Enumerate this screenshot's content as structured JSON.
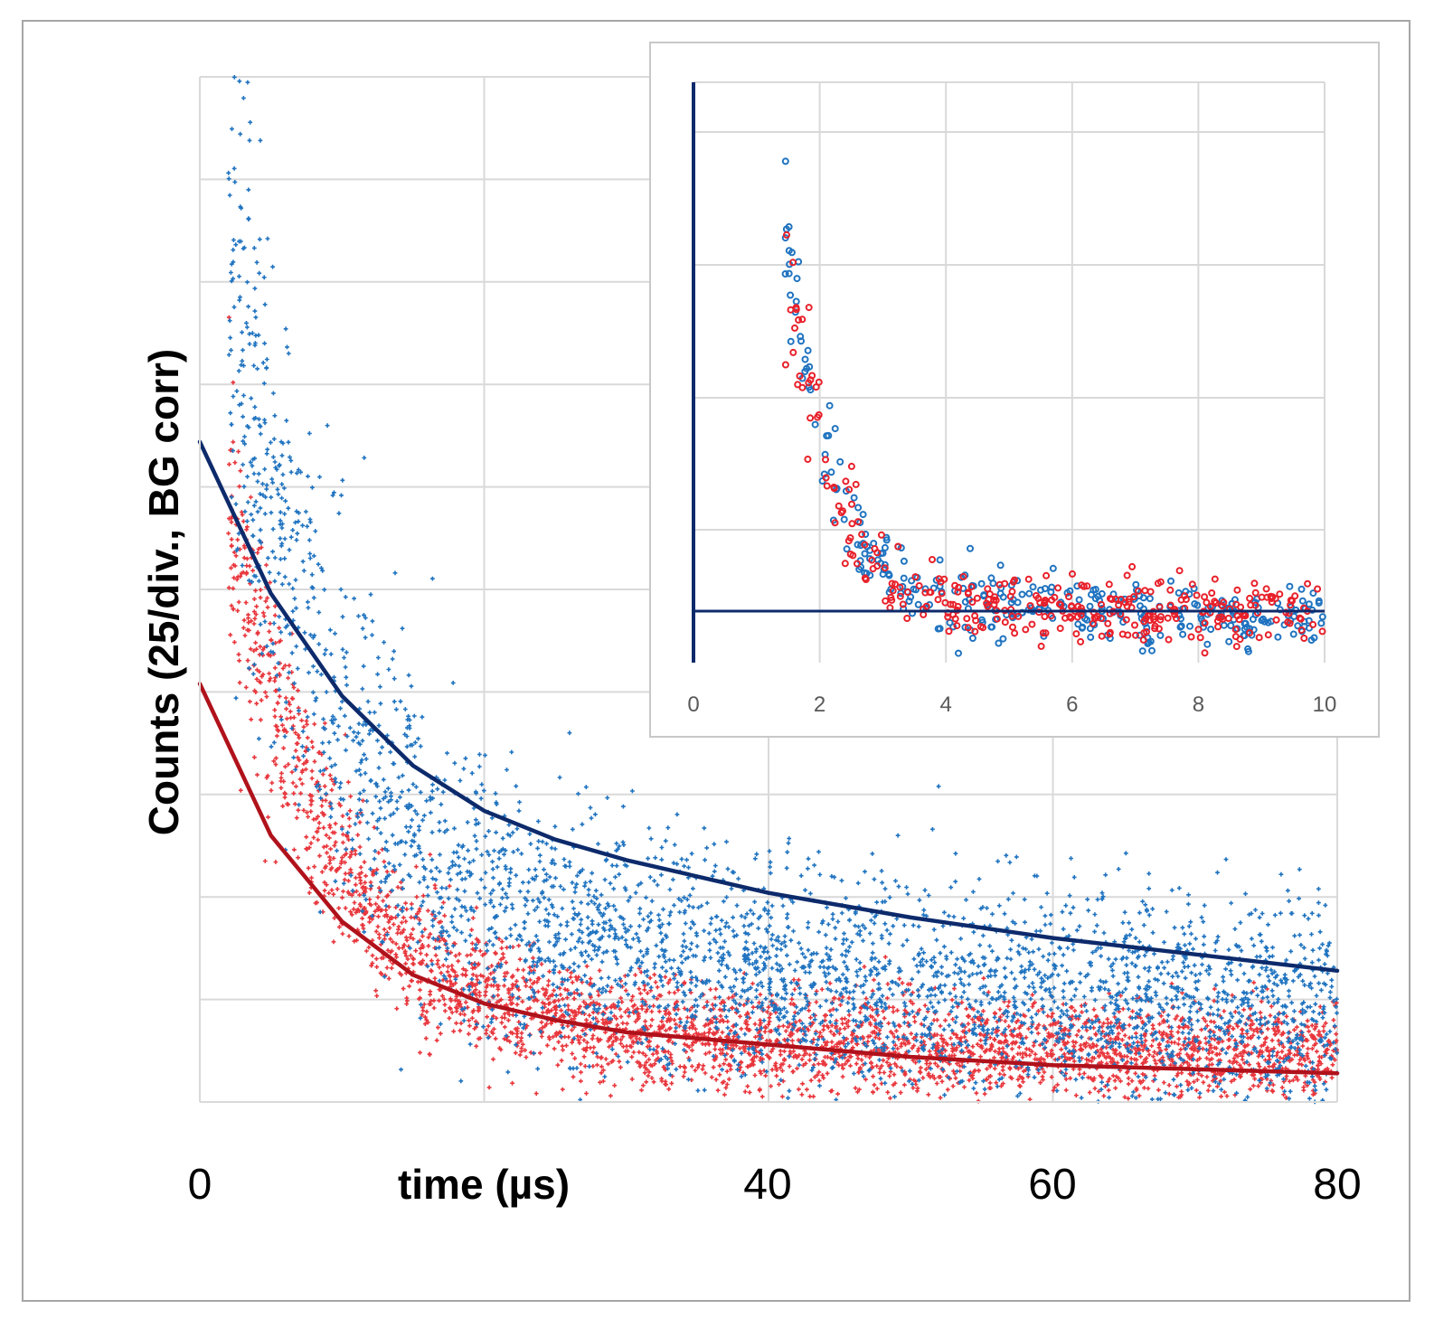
{
  "chart_data": [
    {
      "type": "scatter",
      "name": "main",
      "title": "",
      "xlabel": "time (µs)",
      "ylabel": "Counts (25/div., BG corr)",
      "xlim": [
        0,
        80
      ],
      "ylim": [
        0,
        250
      ],
      "y_grid_step": 25,
      "x_grid_step": 20,
      "grid": true,
      "x_tick_labels": [
        {
          "value": 0,
          "label": "0"
        },
        {
          "value": 40,
          "label": "40"
        },
        {
          "value": 60,
          "label": "60"
        },
        {
          "value": 80,
          "label": "80"
        }
      ],
      "series": [
        {
          "name": "blue data",
          "color": "#1f73c0",
          "marker": "plus",
          "decay_model": {
            "fast_amplitude": 95,
            "fast_tau": 8,
            "slow_amplitude": 38,
            "slow_tau": 150,
            "noise": 13
          }
        },
        {
          "name": "red data",
          "color": "#e8363c",
          "marker": "plus",
          "decay_model": {
            "fast_amplitude": 78,
            "fast_tau": 7,
            "slow_amplitude": 11,
            "slow_tau": 90,
            "noise": 6
          }
        }
      ],
      "fits": [
        {
          "name": "blue fit",
          "color": "#0d2a6b",
          "y0": 161,
          "points": [
            [
              0,
              161
            ],
            [
              5,
              124
            ],
            [
              10,
              99
            ],
            [
              15,
              82
            ],
            [
              20,
              71
            ],
            [
              25,
              64
            ],
            [
              30,
              59
            ],
            [
              40,
              51
            ],
            [
              50,
              45
            ],
            [
              60,
              40
            ],
            [
              70,
              36
            ],
            [
              80,
              32
            ]
          ]
        },
        {
          "name": "red fit",
          "color": "#b0121b",
          "y0": 102,
          "points": [
            [
              0,
              102
            ],
            [
              5,
              65
            ],
            [
              10,
              44
            ],
            [
              15,
              31
            ],
            [
              20,
              24
            ],
            [
              25,
              20
            ],
            [
              30,
              17
            ],
            [
              40,
              14
            ],
            [
              50,
              11
            ],
            [
              60,
              9
            ],
            [
              70,
              8
            ],
            [
              80,
              7
            ]
          ]
        }
      ]
    },
    {
      "type": "scatter",
      "name": "inset",
      "xlim": [
        0,
        10
      ],
      "ylim": [
        -8,
        80
      ],
      "x_ticks": [
        "0",
        "2",
        "4",
        "6",
        "8",
        "10"
      ],
      "y_grid_step": 20,
      "baseline_color": "#0d2a6b",
      "grid": true,
      "series": [
        {
          "name": "blue data",
          "color": "#1f73c0",
          "marker": "circle",
          "decay_model": {
            "amplitude": 420,
            "tau": 0.75,
            "noise": 2.6
          }
        },
        {
          "name": "red data",
          "color": "#e8202a",
          "marker": "circle",
          "decay_model": {
            "amplitude": 440,
            "tau": 0.72,
            "noise": 2.4
          }
        }
      ]
    }
  ]
}
